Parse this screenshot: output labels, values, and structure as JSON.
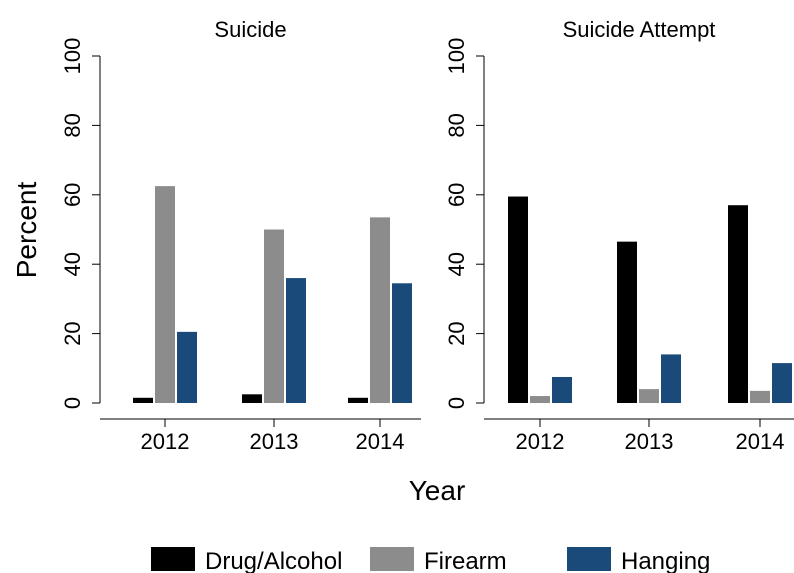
{
  "chart_data": {
    "type": "bar",
    "ylabel": "Percent",
    "xlabel": "Year",
    "ylim": [
      0,
      100
    ],
    "yticks": [
      0,
      20,
      40,
      60,
      80,
      100
    ],
    "categories": [
      "2012",
      "2013",
      "2014"
    ],
    "legend": {
      "placement": "bottom",
      "items": [
        {
          "name": "Drug/Alcohol",
          "color": "#000000"
        },
        {
          "name": "Firearm",
          "color": "#8c8c8c"
        },
        {
          "name": "Hanging",
          "color": "#1a4a7a"
        }
      ]
    },
    "panels": [
      {
        "title": "Suicide",
        "series": [
          {
            "name": "Drug/Alcohol",
            "values": [
              1.5,
              2.5,
              1.5
            ]
          },
          {
            "name": "Firearm",
            "values": [
              62.5,
              50,
              53.5
            ]
          },
          {
            "name": "Hanging",
            "values": [
              20.5,
              36,
              34.5
            ]
          }
        ]
      },
      {
        "title": "Suicide Attempt",
        "series": [
          {
            "name": "Drug/Alcohol",
            "values": [
              59.5,
              46.5,
              57
            ]
          },
          {
            "name": "Firearm",
            "values": [
              2,
              4,
              3.5
            ]
          },
          {
            "name": "Hanging",
            "values": [
              7.5,
              14,
              11.5
            ]
          }
        ]
      }
    ]
  }
}
